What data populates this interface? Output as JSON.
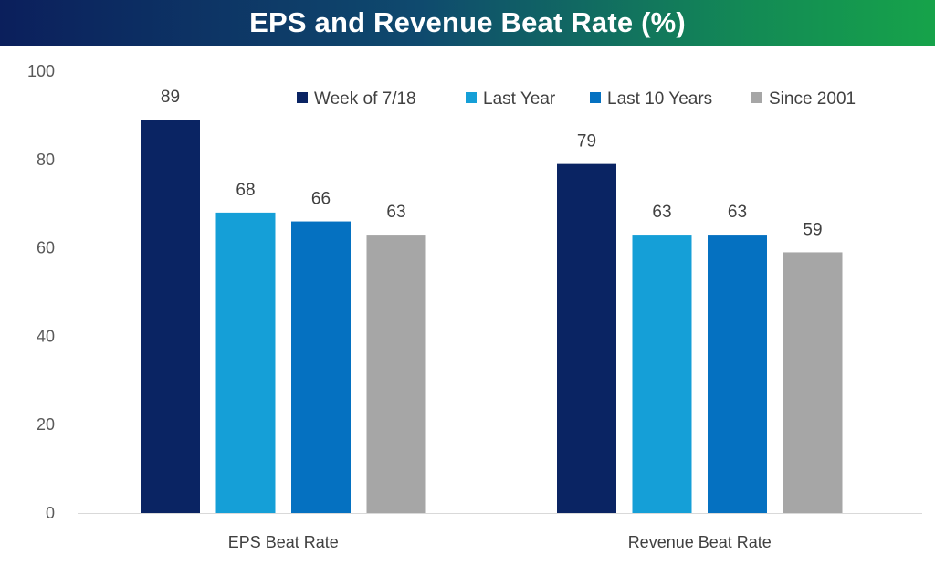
{
  "chart_data": {
    "type": "bar",
    "title": "EPS and Revenue Beat Rate (%)",
    "categories": [
      "EPS Beat Rate",
      "Revenue Beat Rate"
    ],
    "series": [
      {
        "name": "Week of 7/18",
        "values": [
          89,
          79
        ],
        "color": "#0a2463"
      },
      {
        "name": "Last Year",
        "values": [
          68,
          63
        ],
        "color": "#159fd7"
      },
      {
        "name": "Last 10 Years",
        "values": [
          66,
          63
        ],
        "color": "#0571c1"
      },
      {
        "name": "Since 2001",
        "values": [
          63,
          59
        ],
        "color": "#a6a6a6"
      }
    ],
    "ylim": [
      0,
      100
    ],
    "yticks": [
      0,
      20,
      40,
      60,
      80,
      100
    ],
    "xlabel": "",
    "ylabel": "",
    "grid": false,
    "legend": "top-right"
  },
  "colors": {
    "title_gradient": [
      "#0b1f5c",
      "#16a34a"
    ],
    "axis": "#d9d9d9"
  }
}
